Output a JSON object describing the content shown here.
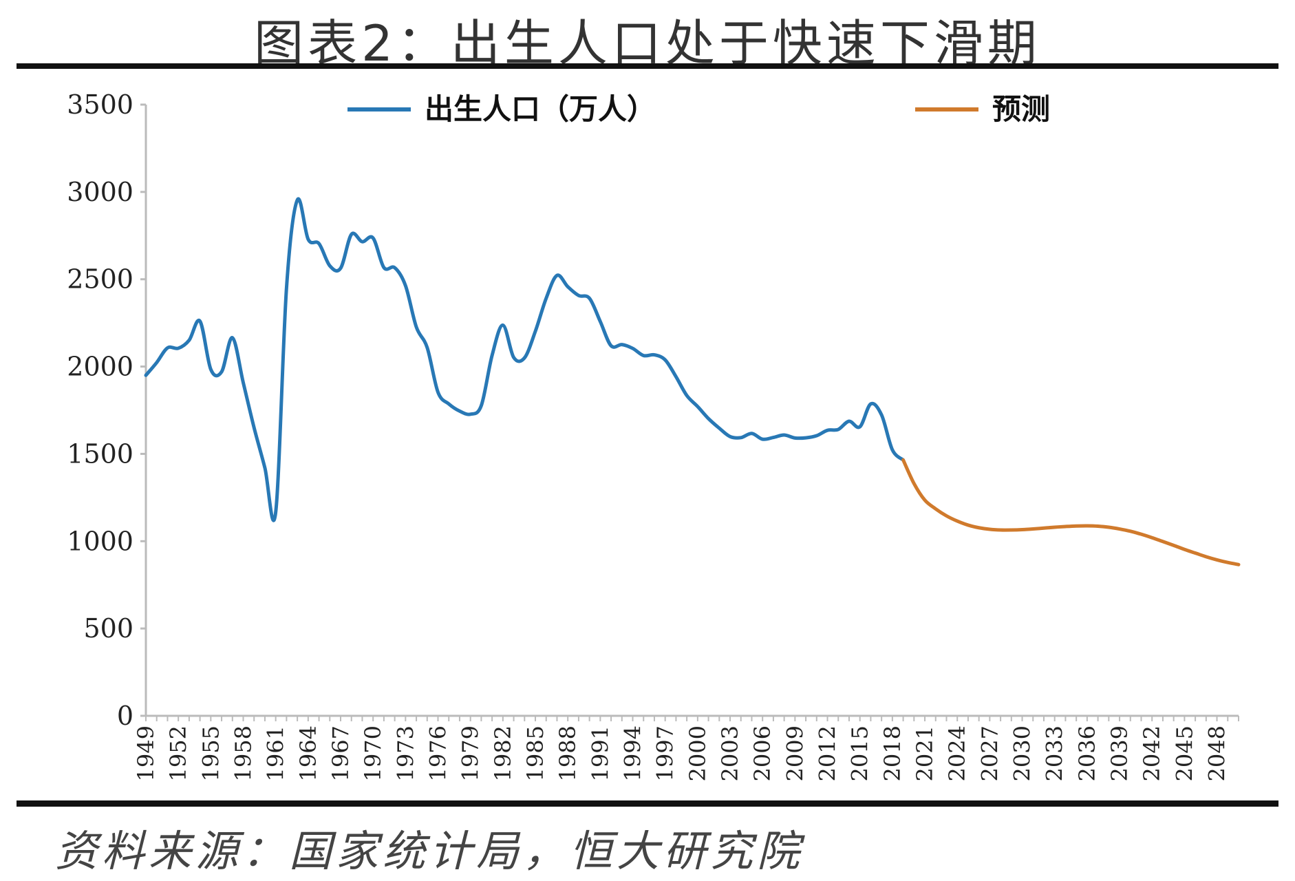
{
  "page": {
    "title": "图表2：出生人口处于快速下滑期",
    "source": "资料来源：国家统计局，恒大研究院"
  },
  "chart_data": {
    "type": "line",
    "title": "图表2：出生人口处于快速下滑期",
    "xlabel": "",
    "ylabel": "",
    "xlim": [
      1949,
      2050
    ],
    "ylim": [
      0,
      3500
    ],
    "y_ticks": [
      0,
      500,
      1000,
      1500,
      2000,
      2500,
      3000,
      3500
    ],
    "x_tick_labels": [
      "1949",
      "1952",
      "1955",
      "1958",
      "1961",
      "1964",
      "1967",
      "1970",
      "1973",
      "1976",
      "1979",
      "1982",
      "1985",
      "1988",
      "1991",
      "1994",
      "1997",
      "2000",
      "2003",
      "2006",
      "2009",
      "2012",
      "2015",
      "2018",
      "2021",
      "2024",
      "2027",
      "2030",
      "2033",
      "2036",
      "2039",
      "2042",
      "2045",
      "2048"
    ],
    "grid": false,
    "legend": "top",
    "series": [
      {
        "name": "出生人口（万人）",
        "color": "#2878b5",
        "x": [
          1949,
          1950,
          1951,
          1952,
          1953,
          1954,
          1955,
          1956,
          1957,
          1958,
          1959,
          1960,
          1961,
          1962,
          1963,
          1964,
          1965,
          1966,
          1967,
          1968,
          1969,
          1970,
          1971,
          1972,
          1973,
          1974,
          1975,
          1976,
          1977,
          1978,
          1979,
          1980,
          1981,
          1982,
          1983,
          1984,
          1985,
          1986,
          1987,
          1988,
          1989,
          1990,
          1991,
          1992,
          1993,
          1994,
          1995,
          1996,
          1997,
          1998,
          1999,
          2000,
          2001,
          2002,
          2003,
          2004,
          2005,
          2006,
          2007,
          2008,
          2009,
          2010,
          2011,
          2012,
          2013,
          2014,
          2015,
          2016,
          2017,
          2018,
          2019
        ],
        "y": [
          1950,
          2023,
          2107,
          2105,
          2151,
          2260,
          1984,
          1970,
          2165,
          1908,
          1650,
          1420,
          1166,
          2451,
          2954,
          2729,
          2704,
          2577,
          2563,
          2757,
          2715,
          2736,
          2567,
          2566,
          2463,
          2226,
          2109,
          1853,
          1786,
          1745,
          1727,
          1776,
          2064,
          2237,
          2052,
          2050,
          2202,
          2391,
          2522,
          2457,
          2407,
          2391,
          2258,
          2119,
          2126,
          2104,
          2063,
          2067,
          2038,
          1942,
          1834,
          1771,
          1702,
          1647,
          1599,
          1593,
          1617,
          1584,
          1594,
          1608,
          1591,
          1592,
          1604,
          1635,
          1640,
          1687,
          1655,
          1786,
          1723,
          1523,
          1465
        ]
      },
      {
        "name": "预测",
        "color": "#d07a2c",
        "x": [
          2019,
          2020,
          2021,
          2022,
          2023,
          2024,
          2025,
          2026,
          2027,
          2028,
          2029,
          2030,
          2031,
          2032,
          2033,
          2034,
          2035,
          2036,
          2037,
          2038,
          2039,
          2040,
          2041,
          2042,
          2043,
          2044,
          2045,
          2046,
          2047,
          2048,
          2049,
          2050
        ],
        "y": [
          1465,
          1330,
          1235,
          1185,
          1145,
          1115,
          1092,
          1077,
          1068,
          1064,
          1064,
          1066,
          1070,
          1075,
          1080,
          1084,
          1087,
          1088,
          1086,
          1080,
          1070,
          1057,
          1040,
          1020,
          998,
          976,
          953,
          932,
          911,
          893,
          878,
          866
        ]
      }
    ]
  }
}
